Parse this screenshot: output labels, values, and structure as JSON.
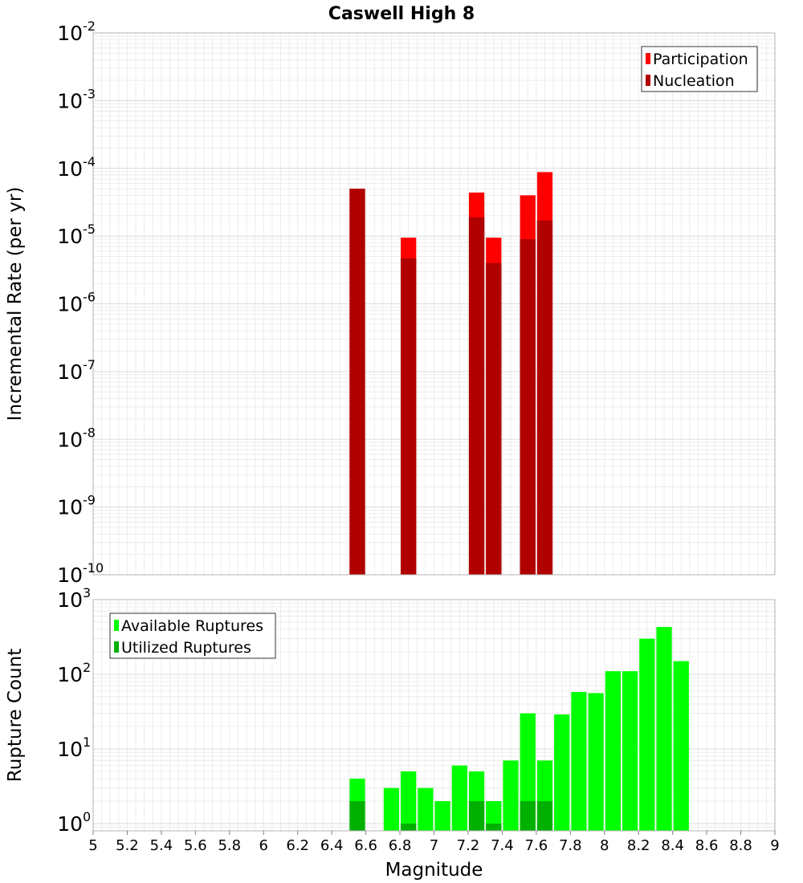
{
  "chart_data": [
    {
      "type": "bar",
      "title": "Caswell High 8",
      "xlabel": "",
      "ylabel": "Incremental Rate (per yr)",
      "yscale": "log",
      "ylim": [
        1e-10,
        0.01
      ],
      "xlim": [
        5,
        9
      ],
      "bar_width": 0.1,
      "yticks": [
        {
          "base": "10",
          "exp": "-10"
        },
        {
          "base": "10",
          "exp": "-9"
        },
        {
          "base": "10",
          "exp": "-8"
        },
        {
          "base": "10",
          "exp": "-7"
        },
        {
          "base": "10",
          "exp": "-6"
        },
        {
          "base": "10",
          "exp": "-5"
        },
        {
          "base": "10",
          "exp": "-4"
        },
        {
          "base": "10",
          "exp": "-3"
        },
        {
          "base": "10",
          "exp": "-2"
        }
      ],
      "legend": {
        "position": "top-right",
        "entries": [
          "Participation",
          "Nucleation"
        ]
      },
      "colors": {
        "Participation": "#ff0000",
        "Nucleation": "#b00000"
      },
      "grid": true,
      "series": [
        {
          "name": "Participation",
          "x": [
            6.55,
            6.85,
            7.25,
            7.35,
            7.55,
            7.65
          ],
          "values": [
            5e-05,
            9.5e-06,
            4.4e-05,
            9.5e-06,
            4e-05,
            8.8e-05
          ]
        },
        {
          "name": "Nucleation",
          "x": [
            6.55,
            6.85,
            7.25,
            7.35,
            7.55,
            7.65
          ],
          "values": [
            5e-05,
            4.7e-06,
            1.9e-05,
            4e-06,
            9e-06,
            1.7e-05
          ]
        }
      ]
    },
    {
      "type": "bar",
      "title": "",
      "xlabel": "Magnitude",
      "ylabel": "Rupture Count",
      "yscale": "log",
      "ylim": [
        0.8,
        1000
      ],
      "xlim": [
        5,
        9
      ],
      "bar_width": 0.1,
      "yticks": [
        {
          "base": "10",
          "exp": "0"
        },
        {
          "base": "10",
          "exp": "1"
        },
        {
          "base": "10",
          "exp": "2"
        },
        {
          "base": "10",
          "exp": "3"
        }
      ],
      "xticks": [
        "5",
        "5.2",
        "5.4",
        "5.6",
        "5.8",
        "6",
        "6.2",
        "6.4",
        "6.6",
        "6.8",
        "7",
        "7.2",
        "7.4",
        "7.6",
        "7.8",
        "8",
        "8.2",
        "8.4",
        "8.6",
        "8.8",
        "9"
      ],
      "legend": {
        "position": "top-left",
        "entries": [
          "Available Ruptures",
          "Utilized Ruptures"
        ]
      },
      "colors": {
        "Available Ruptures": "#00ff00",
        "Utilized Ruptures": "#00b000"
      },
      "grid": true,
      "series": [
        {
          "name": "Available Ruptures",
          "x": [
            6.55,
            6.75,
            6.85,
            6.95,
            7.05,
            7.15,
            7.25,
            7.35,
            7.45,
            7.55,
            7.65,
            7.75,
            7.85,
            7.95,
            8.05,
            8.15,
            8.25,
            8.35,
            8.45
          ],
          "values": [
            4,
            3,
            5,
            3,
            2,
            6,
            5,
            2,
            7,
            30,
            7,
            29,
            58,
            56,
            110,
            110,
            300,
            430,
            150
          ]
        },
        {
          "name": "Utilized Ruptures",
          "x": [
            6.55,
            6.85,
            7.25,
            7.35,
            7.55,
            7.65
          ],
          "values": [
            2,
            1,
            2,
            1,
            2,
            2
          ]
        }
      ]
    }
  ]
}
